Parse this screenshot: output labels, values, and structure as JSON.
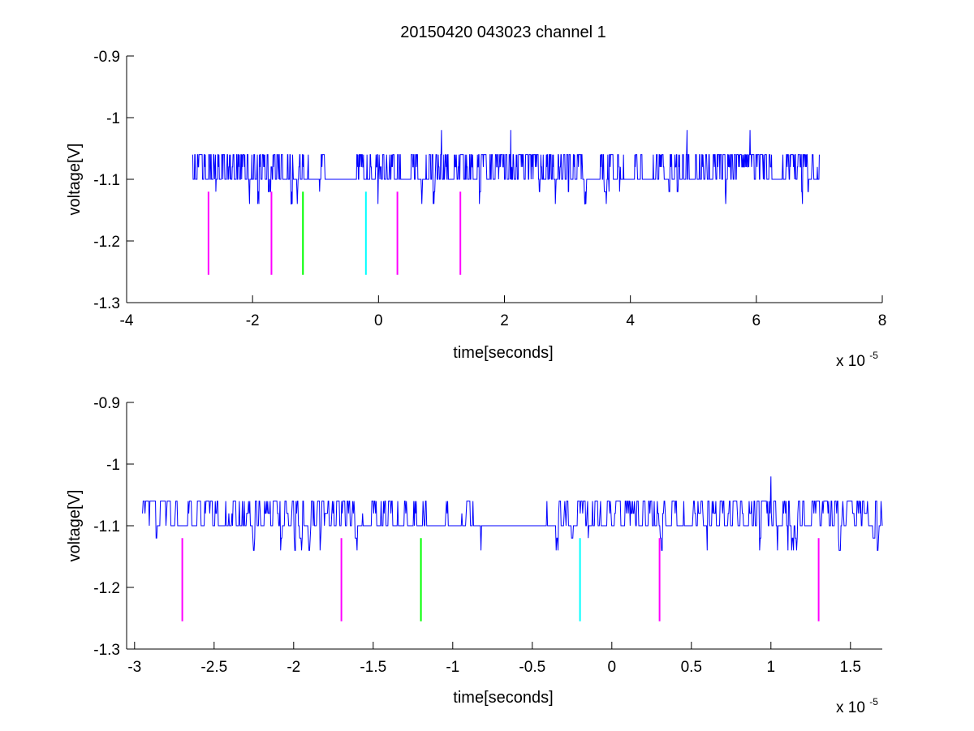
{
  "figure": {
    "title": "20150420 043023 channel 1"
  },
  "colors": {
    "signal": "#0000ff",
    "marker_magenta": "#ff00ff",
    "marker_green": "#00ff00",
    "marker_cyan": "#00ffff",
    "axes": "#000000",
    "background": "#ffffff"
  },
  "chart_data": [
    {
      "type": "line",
      "title": "20150420 043023 channel 1",
      "xlabel": "time[seconds]",
      "ylabel": "voltage[V]",
      "x_exponent_label": "x 10",
      "x_exponent_power": "-5",
      "xlim": [
        -4e-05,
        8e-05
      ],
      "ylim": [
        -1.3,
        -0.9
      ],
      "x_ticks": [
        -4e-05,
        -2e-05,
        0,
        2e-05,
        4e-05,
        6e-05,
        8e-05
      ],
      "x_tick_labels": [
        "-4",
        "-2",
        "0",
        "2",
        "4",
        "6",
        "8"
      ],
      "y_ticks": [
        -0.9,
        -1.0,
        -1.1,
        -1.2,
        -1.3
      ],
      "y_tick_labels": [
        "-0.9",
        "-1",
        "-1.1",
        "-1.2",
        "-1.3"
      ],
      "grid": false,
      "series": [
        {
          "color": "#0000ff",
          "description": "quantized noisy trace, levels -1.06 / -1.08 / -1.10 / -1.12 / -1.14 V",
          "x_range": [
            -2.95e-05,
            7e-05
          ],
          "baseline": -1.1,
          "levels": [
            -1.06,
            -1.08,
            -1.1,
            -1.12,
            -1.14
          ],
          "spikes": [
            {
              "x": 1e-05,
              "y": -1.02
            },
            {
              "x": 2.1e-05,
              "y": -1.02
            },
            {
              "x": 4.9e-05,
              "y": -1.02
            },
            {
              "x": 5.9e-05,
              "y": -1.02
            }
          ]
        }
      ],
      "markers": [
        {
          "x": -2.7e-05,
          "y_top": -1.12,
          "y_bottom": -1.255,
          "color": "#ff00ff"
        },
        {
          "x": -1.7e-05,
          "y_top": -1.12,
          "y_bottom": -1.255,
          "color": "#ff00ff"
        },
        {
          "x": -1.2e-05,
          "y_top": -1.12,
          "y_bottom": -1.255,
          "color": "#00ff00"
        },
        {
          "x": -2e-06,
          "y_top": -1.12,
          "y_bottom": -1.255,
          "color": "#00ffff"
        },
        {
          "x": 3e-06,
          "y_top": -1.12,
          "y_bottom": -1.255,
          "color": "#ff00ff"
        },
        {
          "x": 1.3e-05,
          "y_top": -1.12,
          "y_bottom": -1.255,
          "color": "#ff00ff"
        }
      ]
    },
    {
      "type": "line",
      "title": "",
      "xlabel": "time[seconds]",
      "ylabel": "voltage[V]",
      "x_exponent_label": "x 10",
      "x_exponent_power": "-5",
      "xlim": [
        -3.05e-05,
        1.7e-05
      ],
      "ylim": [
        -1.3,
        -0.9
      ],
      "x_ticks": [
        -3e-05,
        -2.5e-05,
        -2e-05,
        -1.5e-05,
        -1e-05,
        -5e-06,
        0,
        5e-06,
        1e-05,
        1.5e-05
      ],
      "x_tick_labels": [
        "-3",
        "-2.5",
        "-2",
        "-1.5",
        "-1",
        "-0.5",
        "0",
        "0.5",
        "1",
        "1.5"
      ],
      "y_ticks": [
        -0.9,
        -1.0,
        -1.1,
        -1.2,
        -1.3
      ],
      "y_tick_labels": [
        "-0.9",
        "-1",
        "-1.1",
        "-1.2",
        "-1.3"
      ],
      "grid": false,
      "series": [
        {
          "color": "#0000ff",
          "description": "zoomed view of the same quantized trace",
          "x_range": [
            -2.95e-05,
            1.7e-05
          ],
          "baseline": -1.1,
          "levels": [
            -1.06,
            -1.08,
            -1.1,
            -1.12,
            -1.14
          ],
          "spikes": [
            {
              "x": 1e-05,
              "y": -1.02
            }
          ]
        }
      ],
      "markers": [
        {
          "x": -2.7e-05,
          "y_top": -1.12,
          "y_bottom": -1.255,
          "color": "#ff00ff"
        },
        {
          "x": -1.7e-05,
          "y_top": -1.12,
          "y_bottom": -1.255,
          "color": "#ff00ff"
        },
        {
          "x": -1.2e-05,
          "y_top": -1.12,
          "y_bottom": -1.255,
          "color": "#00ff00"
        },
        {
          "x": -2e-06,
          "y_top": -1.12,
          "y_bottom": -1.255,
          "color": "#00ffff"
        },
        {
          "x": 3e-06,
          "y_top": -1.12,
          "y_bottom": -1.255,
          "color": "#ff00ff"
        },
        {
          "x": 1.3e-05,
          "y_top": -1.12,
          "y_bottom": -1.255,
          "color": "#ff00ff"
        }
      ]
    }
  ]
}
